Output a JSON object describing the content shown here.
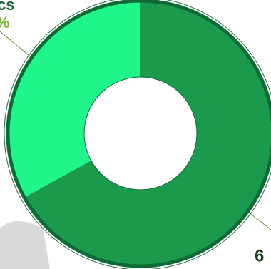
{
  "chart_data": {
    "type": "donut",
    "categories": [
      null,
      null
    ],
    "values": [
      67,
      33
    ],
    "colors": [
      "#1b9a4e",
      "#1ff58b"
    ],
    "labels": [
      "cs",
      "%",
      "6"
    ]
  }
}
